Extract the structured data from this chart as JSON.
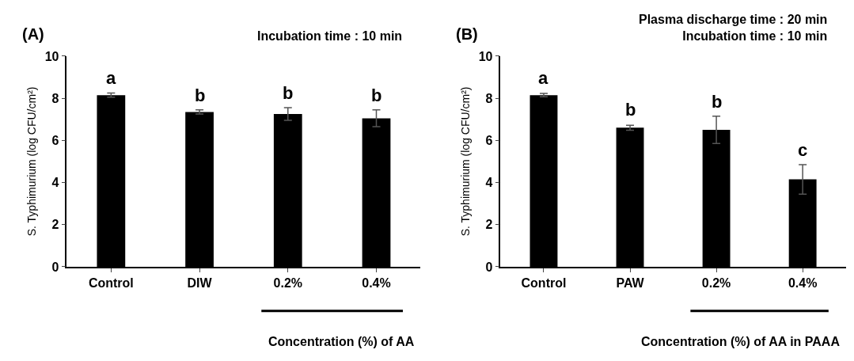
{
  "chart_data": [
    {
      "type": "bar",
      "title": "(A)",
      "subtitle": "Incubation time : 10 min",
      "xlabel": "Concentration (%) of AA",
      "ylabel": "S. Typhimurium (log CFU/cm²)",
      "categories": [
        "Control",
        "DIW",
        "0.2%",
        "0.4%"
      ],
      "values": [
        8.15,
        7.35,
        7.25,
        7.05
      ],
      "errors": [
        0.1,
        0.1,
        0.3,
        0.4
      ],
      "color": "#000000",
      "ylim": [
        0,
        10
      ],
      "yticks": [
        0,
        2,
        4,
        6,
        8,
        10
      ],
      "annotations": [
        {
          "text": "a",
          "x": "Control",
          "y": 8.4
        },
        {
          "text": "b",
          "x": "DIW",
          "y": 7.6
        },
        {
          "text": "b",
          "x": "0.2%",
          "y": 7.7
        },
        {
          "text": "b",
          "x": "0.4%",
          "y": 7.6
        }
      ]
    },
    {
      "type": "bar",
      "title": "(B)",
      "subtitle": "Plasma discharge time : 20 min\nIncubation time : 10 min",
      "xlabel": "Concentration (%) of AA in PAAA",
      "ylabel": "S. Typhimurium (log CFU/cm²)",
      "categories": [
        "Control",
        "PAW",
        "0.2%",
        "0.4%"
      ],
      "values": [
        8.15,
        6.6,
        6.5,
        4.15
      ],
      "errors": [
        0.08,
        0.12,
        0.65,
        0.7
      ],
      "color": "#000000",
      "ylim": [
        0,
        10
      ],
      "yticks": [
        0,
        2,
        4,
        6,
        8,
        10
      ],
      "annotations": [
        {
          "text": "a",
          "x": "Control",
          "y": 8.4
        },
        {
          "text": "b",
          "x": "PAW",
          "y": 6.9
        },
        {
          "text": "b",
          "x": "0.2%",
          "y": 7.3
        },
        {
          "text": "c",
          "x": "0.4%",
          "y": 5.0
        }
      ]
    }
  ]
}
